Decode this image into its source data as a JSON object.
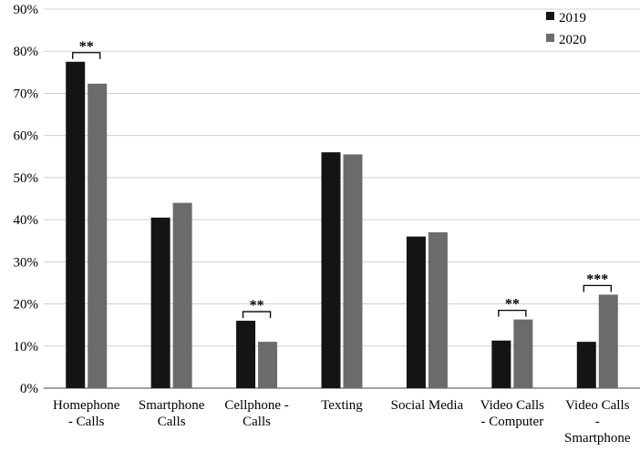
{
  "chart_data": {
    "type": "bar",
    "title": "",
    "xlabel": "",
    "ylabel": "",
    "ylim": [
      0,
      90
    ],
    "yticks": [
      "0%",
      "10%",
      "20%",
      "30%",
      "40%",
      "50%",
      "60%",
      "70%",
      "80%",
      "90%"
    ],
    "ytick_values": [
      0,
      10,
      20,
      30,
      40,
      50,
      60,
      70,
      80,
      90
    ],
    "grid": true,
    "legend_position": "top-right",
    "categories": [
      [
        "Homephone",
        "- Calls"
      ],
      [
        "Smartphone",
        "Calls"
      ],
      [
        "Cellphone -",
        "Calls"
      ],
      [
        "Texting"
      ],
      [
        "Social Media"
      ],
      [
        "Video Calls",
        "- Computer"
      ],
      [
        "Video Calls",
        "-",
        "Smartphone"
      ]
    ],
    "series": [
      {
        "name": "2019",
        "color": "#141414",
        "values": [
          77.5,
          40.5,
          16,
          56,
          36,
          11.3,
          11
        ]
      },
      {
        "name": "2020",
        "color": "#6b6b6b",
        "values": [
          72.3,
          44,
          11,
          55.5,
          37,
          16.3,
          22.2
        ]
      }
    ],
    "annotations": [
      {
        "category_index": 0,
        "label": "**"
      },
      {
        "category_index": 2,
        "label": "**"
      },
      {
        "category_index": 5,
        "label": "**"
      },
      {
        "category_index": 6,
        "label": "***"
      }
    ]
  }
}
